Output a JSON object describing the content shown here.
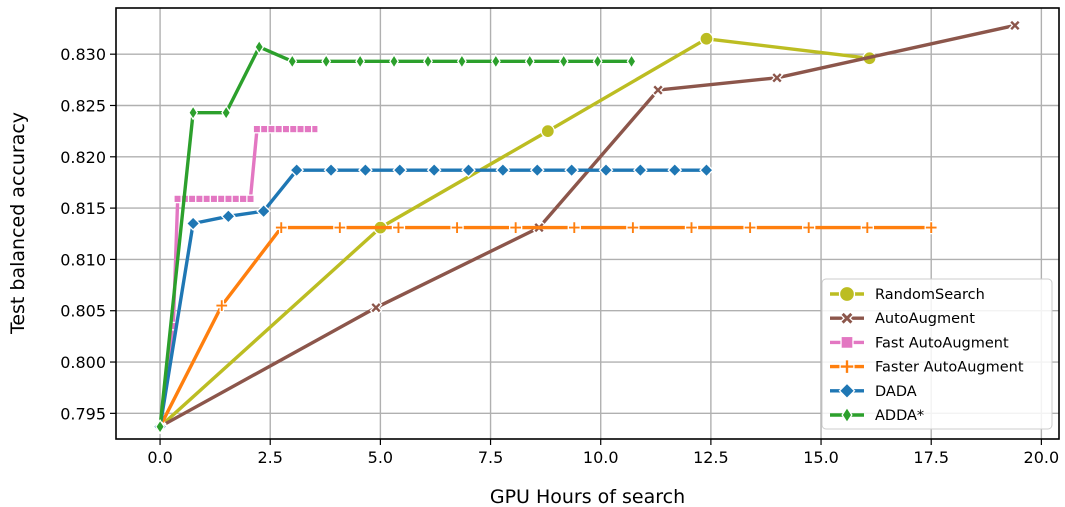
{
  "chart_data": {
    "type": "line",
    "xlabel": "GPU Hours of search",
    "ylabel": "Test balanced accuracy",
    "xlim": [
      -1.0,
      20.4
    ],
    "ylim": [
      0.7925,
      0.8345
    ],
    "xticks": [
      0.0,
      2.5,
      5.0,
      7.5,
      10.0,
      12.5,
      15.0,
      17.5,
      20.0
    ],
    "xtick_labels": [
      "0.0",
      "2.5",
      "5.0",
      "7.5",
      "10.0",
      "12.5",
      "15.0",
      "17.5",
      "20.0"
    ],
    "yticks": [
      0.795,
      0.8,
      0.805,
      0.81,
      0.815,
      0.82,
      0.825,
      0.83
    ],
    "ytick_labels": [
      "0.795",
      "0.800",
      "0.805",
      "0.810",
      "0.815",
      "0.820",
      "0.825",
      "0.830"
    ],
    "grid": true,
    "legend_position": "lower-right",
    "series": [
      {
        "name": "RandomSearch",
        "color": "#bcbd22",
        "marker": "circle",
        "x": [
          0.0,
          5.0,
          8.8,
          12.4,
          16.1
        ],
        "y": [
          0.7937,
          0.8131,
          0.8225,
          0.8315,
          0.8296
        ]
      },
      {
        "name": "AutoAugment",
        "color": "#8c564b",
        "marker": "x",
        "x": [
          0.0,
          4.9,
          8.6,
          11.3,
          14.0,
          19.4
        ],
        "y": [
          0.7937,
          0.8053,
          0.8131,
          0.8265,
          0.8277,
          0.8328
        ]
      },
      {
        "name": "Fast AutoAugment",
        "color": "#e377c2",
        "marker": "square",
        "x": [
          0.0,
          0.3,
          0.4,
          2.05,
          2.2,
          3.5
        ],
        "y": [
          0.7937,
          0.8035,
          0.8159,
          0.8159,
          0.8227,
          0.8227
        ]
      },
      {
        "name": "Faster AutoAugment",
        "color": "#ff7f0e",
        "marker": "plus",
        "x": [
          0.0,
          1.4,
          2.75,
          17.5
        ],
        "y": [
          0.7937,
          0.8055,
          0.8131,
          0.8131
        ]
      },
      {
        "name": "DADA",
        "color": "#1f77b4",
        "marker": "diamond",
        "x": [
          0.0,
          0.75,
          1.55,
          2.35,
          3.1,
          12.4
        ],
        "y": [
          0.7937,
          0.8135,
          0.8142,
          0.8147,
          0.8187,
          0.8187
        ]
      },
      {
        "name": "ADDA*",
        "color": "#2ca02c",
        "marker": "thin-diamond",
        "x": [
          0.0,
          0.75,
          1.5,
          2.25,
          3.0,
          10.7
        ],
        "y": [
          0.7937,
          0.8243,
          0.8243,
          0.8307,
          0.8293,
          0.8293
        ]
      }
    ]
  }
}
